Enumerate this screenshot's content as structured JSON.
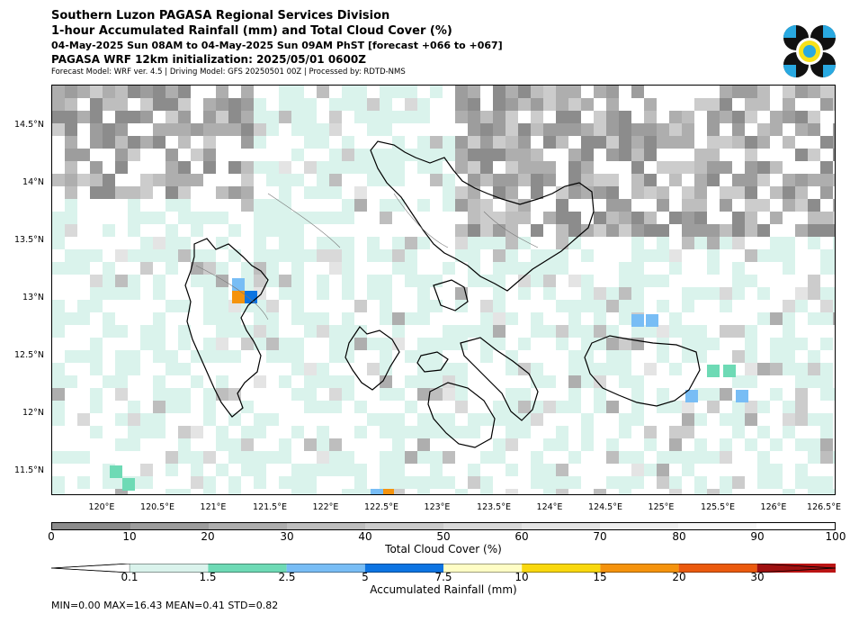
{
  "header": {
    "line1": "Southern Luzon PAGASA Regional Services Division",
    "line2": "1-hour Accumulated Rainfall (mm) and Total Cloud Cover (%)",
    "line3": "04-May-2025 Sun 08AM to 04-May-2025 Sun 09AM PhST [forecast +066 to +067]",
    "line4": "PAGASA WRF 12km initialization: 2025/05/01 0600Z",
    "line5": "Forecast Model: WRF ver. 4.5 | Driving Model: GFS 20250501 00Z | Processed by: RDTD-NMS"
  },
  "logo": {
    "name": "pagasa-logo-icon",
    "colors": {
      "blue": "#29a9e1",
      "black": "#111111",
      "yellow": "#f7e21b"
    }
  },
  "map": {
    "lon_range": [
      119.55,
      126.55
    ],
    "lat_range": [
      11.28,
      14.85
    ],
    "lat_labels": [
      "14.5°N",
      "14°N",
      "13.5°N",
      "13°N",
      "12.5°N",
      "12°N",
      "11.5°N"
    ],
    "lon_labels": [
      "120°E",
      "120.5°E",
      "121°E",
      "121.5°E",
      "122°E",
      "122.5°E",
      "123°E",
      "123.5°E",
      "124°E",
      "124.5°E",
      "125°E",
      "125.5°E",
      "126°E",
      "126.5°E"
    ]
  },
  "cloud_bar": {
    "title": "Total Cloud Cover (%)",
    "labels": [
      "0",
      "10",
      "20",
      "30",
      "40",
      "50",
      "60",
      "70",
      "80",
      "90",
      "100"
    ],
    "colors": [
      "#8c8c8c",
      "#9d9d9d",
      "#aeaeae",
      "#bebebe",
      "#cccccc",
      "#d9d9d9",
      "#e4e4e4",
      "#eeeeee",
      "#f6f6f6",
      "#ffffff"
    ]
  },
  "rain_bar": {
    "title": "Accumulated Rainfall (mm)",
    "labels": [
      "0.1",
      "1.5",
      "2.5",
      "5",
      "7.5",
      "10",
      "15",
      "20",
      "30"
    ],
    "colors": [
      "#ffffff",
      "#daf3ec",
      "#6edab5",
      "#78bdf5",
      "#0d74e2",
      "#fffdc5",
      "#f9d80e",
      "#f5930d",
      "#eb5a0e",
      "#bb1414",
      "#a01010"
    ]
  },
  "stats": "MIN=0.00   MAX=16.43   MEAN=0.41   STD=0.82"
}
